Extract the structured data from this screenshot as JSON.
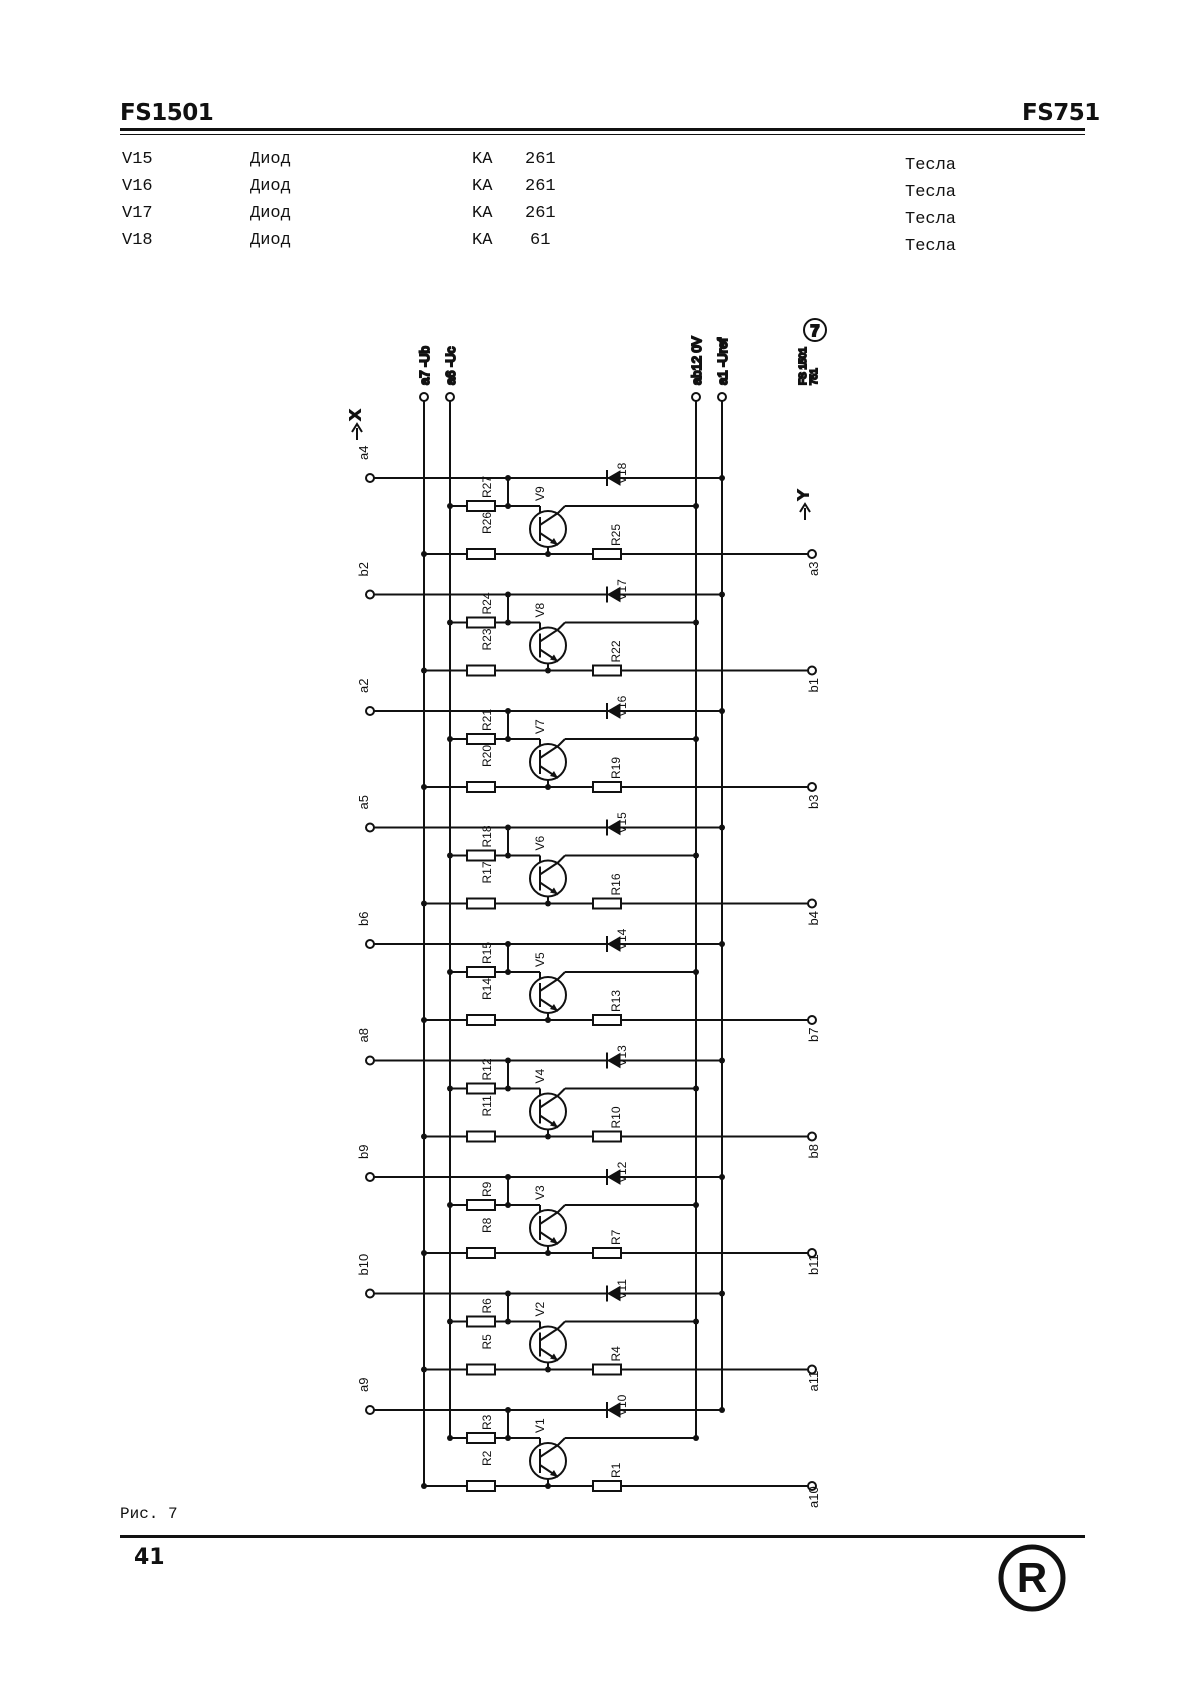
{
  "header": {
    "left": "FS1501",
    "right": "FS751"
  },
  "parts": [
    {
      "ref": "V15",
      "type": "Диод",
      "code": "KA",
      "num": "261",
      "mfr": "Тесла"
    },
    {
      "ref": "V16",
      "type": "Диод",
      "code": "KA",
      "num": "261",
      "mfr": "Тесла"
    },
    {
      "ref": "V17",
      "type": "Диод",
      "code": "KA",
      "num": "261",
      "mfr": "Тесла"
    },
    {
      "ref": "V18",
      "type": "Диод",
      "code": "KA",
      "num": "61",
      "mfr": "Тесла"
    }
  ],
  "schematic": {
    "top_terminals": [
      "a7 -Ub",
      "a6 -Uc",
      "ab12 0V",
      "a1 -Uref"
    ],
    "board_label_top": "FS 1501",
    "board_label_bottom": "751",
    "board_number": "7",
    "arrow_x": "X",
    "arrow_y": "Y",
    "stages": [
      {
        "left": "a4",
        "right": "a3",
        "diode": "V18",
        "transistor": "V9",
        "rb": "R27",
        "rd": "R26",
        "rc": "R25"
      },
      {
        "left": "b2",
        "right": "b1",
        "diode": "V17",
        "transistor": "V8",
        "rb": "R24",
        "rd": "R23",
        "rc": "R22"
      },
      {
        "left": "a2",
        "right": "b3",
        "diode": "V16",
        "transistor": "V7",
        "rb": "R21",
        "rd": "R20",
        "rc": "R19"
      },
      {
        "left": "a5",
        "right": "b4",
        "diode": "V15",
        "transistor": "V6",
        "rb": "R18",
        "rd": "R17",
        "rc": "R16"
      },
      {
        "left": "b6",
        "right": "b7",
        "diode": "V14",
        "transistor": "V5",
        "rb": "R15",
        "rd": "R14",
        "rc": "R13"
      },
      {
        "left": "a8",
        "right": "b8",
        "diode": "V13",
        "transistor": "V4",
        "rb": "R12",
        "rd": "R11",
        "rc": "R10"
      },
      {
        "left": "b9",
        "right": "b11",
        "diode": "V12",
        "transistor": "V3",
        "rb": "R9",
        "rd": "R8",
        "rc": "R7"
      },
      {
        "left": "b10",
        "right": "a11",
        "diode": "V11",
        "transistor": "V2",
        "rb": "R6",
        "rd": "R5",
        "rc": "R4"
      },
      {
        "left": "a9",
        "right": "a10",
        "diode": "V10",
        "transistor": "V1",
        "rb": "R3",
        "rd": "R2",
        "rc": "R1"
      }
    ]
  },
  "caption": "Рис. 7",
  "page_number": "41",
  "logo_letter": "R"
}
